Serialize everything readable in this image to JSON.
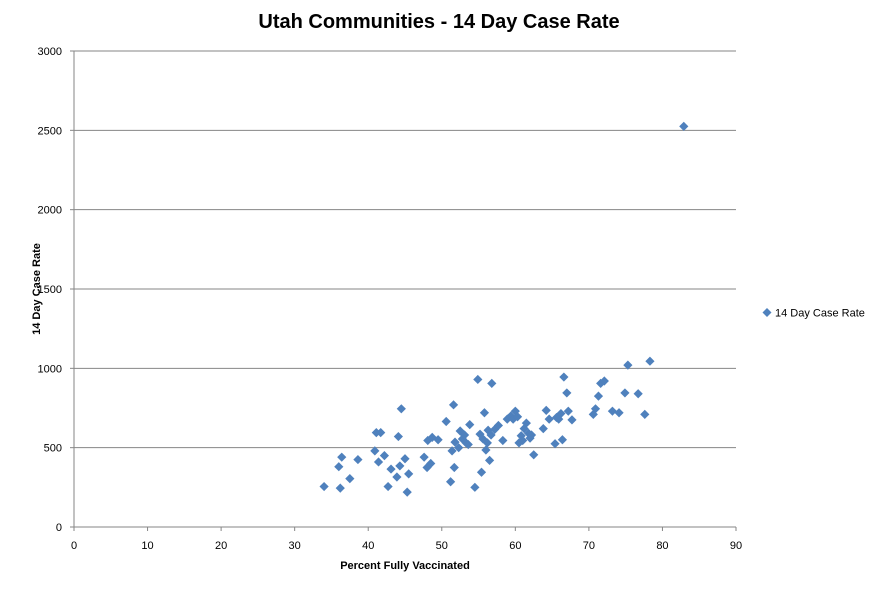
{
  "chart_data": {
    "type": "scatter",
    "title": "Utah Communities - 14 Day Case Rate",
    "xlabel": "Percent Fully Vaccinated",
    "ylabel": "14 Day Case Rate",
    "xlim": [
      0,
      90
    ],
    "ylim": [
      0,
      3000
    ],
    "x_ticks": [
      "0",
      "10",
      "20",
      "30",
      "40",
      "50",
      "60",
      "70",
      "80",
      "90"
    ],
    "y_ticks": [
      "0",
      "500",
      "1000",
      "1500",
      "2000",
      "2500",
      "3000"
    ],
    "grid": "horizontal major gridlines",
    "legend_position": "right",
    "marker_color": "#4F81BD",
    "marker": "diamond",
    "series": [
      {
        "name": "14 Day Case Rate",
        "points": [
          [
            34.0,
            255
          ],
          [
            36.0,
            380
          ],
          [
            36.2,
            245
          ],
          [
            36.4,
            440
          ],
          [
            37.5,
            305
          ],
          [
            38.6,
            425
          ],
          [
            40.9,
            480
          ],
          [
            41.1,
            595
          ],
          [
            41.4,
            410
          ],
          [
            41.7,
            595
          ],
          [
            42.2,
            450
          ],
          [
            42.7,
            255
          ],
          [
            43.1,
            365
          ],
          [
            43.9,
            315
          ],
          [
            44.1,
            570
          ],
          [
            44.3,
            385
          ],
          [
            44.5,
            745
          ],
          [
            45.0,
            430
          ],
          [
            45.3,
            220
          ],
          [
            45.5,
            335
          ],
          [
            47.6,
            440
          ],
          [
            48.0,
            375
          ],
          [
            48.1,
            545
          ],
          [
            48.5,
            400
          ],
          [
            48.7,
            565
          ],
          [
            49.5,
            550
          ],
          [
            50.6,
            665
          ],
          [
            51.2,
            285
          ],
          [
            51.4,
            480
          ],
          [
            51.6,
            770
          ],
          [
            51.7,
            375
          ],
          [
            51.8,
            535
          ],
          [
            52.3,
            500
          ],
          [
            52.5,
            605
          ],
          [
            52.8,
            555
          ],
          [
            53.1,
            580
          ],
          [
            53.3,
            530
          ],
          [
            53.6,
            520
          ],
          [
            53.8,
            645
          ],
          [
            54.5,
            250
          ],
          [
            54.9,
            930
          ],
          [
            55.2,
            585
          ],
          [
            55.4,
            345
          ],
          [
            55.6,
            555
          ],
          [
            55.8,
            720
          ],
          [
            56.0,
            485
          ],
          [
            56.2,
            530
          ],
          [
            56.3,
            610
          ],
          [
            56.5,
            420
          ],
          [
            56.7,
            580
          ],
          [
            56.8,
            905
          ],
          [
            57.2,
            615
          ],
          [
            57.7,
            640
          ],
          [
            58.3,
            545
          ],
          [
            58.9,
            680
          ],
          [
            59.4,
            700
          ],
          [
            59.7,
            680
          ],
          [
            60.0,
            730
          ],
          [
            60.3,
            695
          ],
          [
            60.5,
            530
          ],
          [
            60.8,
            575
          ],
          [
            61.0,
            545
          ],
          [
            61.2,
            620
          ],
          [
            61.5,
            655
          ],
          [
            61.8,
            590
          ],
          [
            62.0,
            560
          ],
          [
            62.2,
            580
          ],
          [
            62.5,
            455
          ],
          [
            63.8,
            620
          ],
          [
            64.2,
            735
          ],
          [
            64.6,
            680
          ],
          [
            65.4,
            525
          ],
          [
            65.6,
            690
          ],
          [
            65.9,
            680
          ],
          [
            66.2,
            715
          ],
          [
            66.4,
            550
          ],
          [
            66.6,
            945
          ],
          [
            67.0,
            845
          ],
          [
            67.2,
            730
          ],
          [
            67.7,
            675
          ],
          [
            70.6,
            710
          ],
          [
            70.9,
            745
          ],
          [
            71.3,
            825
          ],
          [
            71.6,
            905
          ],
          [
            72.1,
            920
          ],
          [
            73.2,
            730
          ],
          [
            74.1,
            720
          ],
          [
            74.9,
            845
          ],
          [
            75.3,
            1020
          ],
          [
            76.7,
            840
          ],
          [
            77.6,
            710
          ],
          [
            78.3,
            1045
          ],
          [
            82.9,
            2525
          ]
        ]
      }
    ]
  },
  "legend": {
    "items": [
      {
        "label": "14 Day Case Rate",
        "color": "#4F81BD"
      }
    ]
  }
}
